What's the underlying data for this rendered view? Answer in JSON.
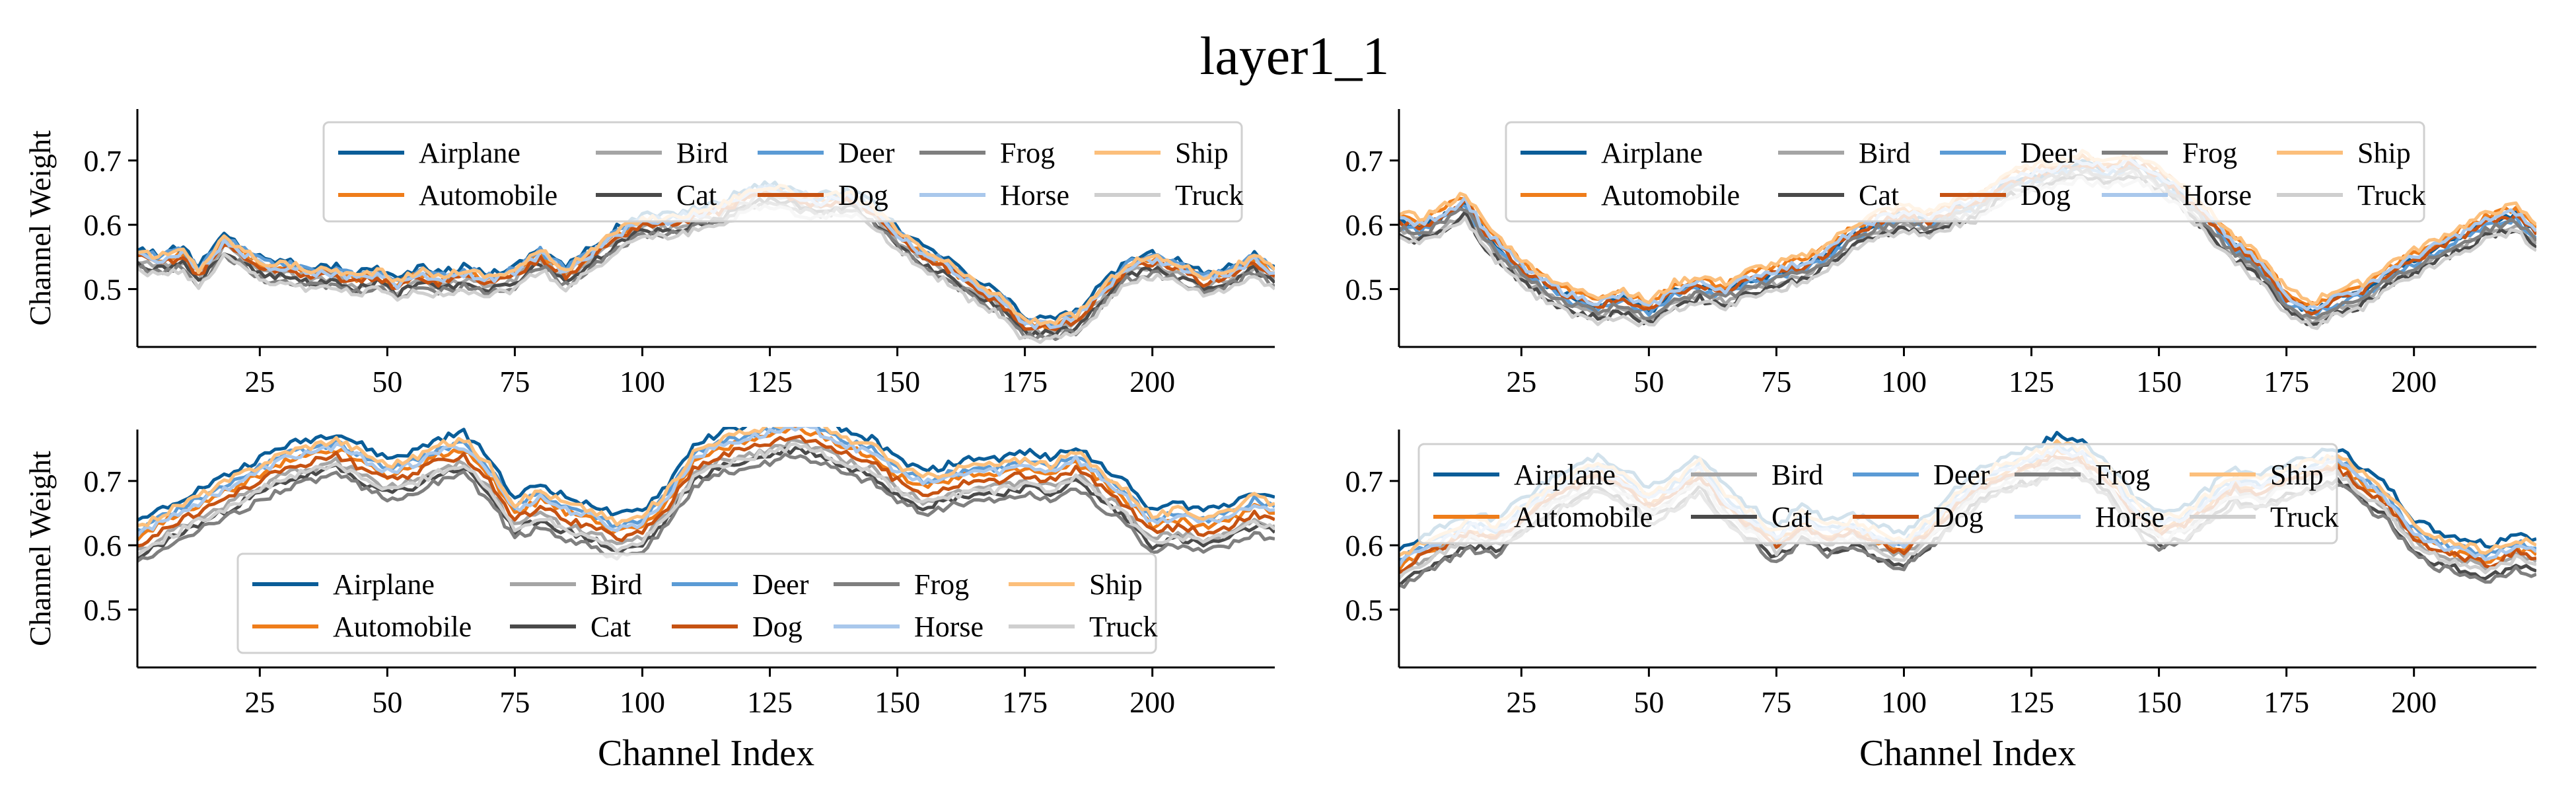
{
  "figure": {
    "title": "layer1_1"
  },
  "colors": {
    "Airplane": "#0a5d98",
    "Automobile": "#ef7d1a",
    "Bird": "#a5a5a5",
    "Cat": "#4a4a4a",
    "Deer": "#5b9bd5",
    "Dog": "#c65212",
    "Frog": "#7f7f7f",
    "Horse": "#a9c8ec",
    "Ship": "#fcbf7b",
    "Truck": "#cfcfcf"
  },
  "chart_data": [
    {
      "type": "line",
      "panel": "top-left",
      "xlim": [
        1,
        224
      ],
      "ylim": [
        0.41,
        0.78
      ],
      "xticks": [
        25,
        50,
        75,
        100,
        125,
        150,
        175,
        200
      ],
      "yticks": [
        0.5,
        0.6,
        0.7
      ],
      "xlabel": "",
      "ylabel": "Channel Weight",
      "legend": {
        "placement": "upper-center",
        "order": [
          "Airplane",
          "Automobile",
          "Bird",
          "Cat",
          "Deer",
          "Dog",
          "Frog",
          "Horse",
          "Ship",
          "Truck"
        ]
      },
      "x": [
        1,
        5,
        10,
        13,
        18,
        22,
        26,
        30,
        35,
        40,
        44,
        48,
        52,
        56,
        60,
        65,
        70,
        75,
        80,
        85,
        90,
        95,
        100,
        105,
        110,
        115,
        120,
        125,
        130,
        135,
        140,
        145,
        150,
        155,
        160,
        165,
        170,
        175,
        180,
        185,
        190,
        195,
        200,
        205,
        210,
        215,
        220,
        224
      ],
      "base": [
        0.55,
        0.54,
        0.55,
        0.52,
        0.57,
        0.55,
        0.53,
        0.53,
        0.52,
        0.52,
        0.51,
        0.52,
        0.5,
        0.52,
        0.51,
        0.52,
        0.51,
        0.52,
        0.55,
        0.52,
        0.55,
        0.58,
        0.6,
        0.6,
        0.61,
        0.62,
        0.64,
        0.65,
        0.64,
        0.63,
        0.64,
        0.62,
        0.58,
        0.55,
        0.53,
        0.5,
        0.48,
        0.44,
        0.44,
        0.45,
        0.49,
        0.53,
        0.54,
        0.53,
        0.51,
        0.52,
        0.54,
        0.52
      ],
      "offsets": {
        "Airplane": 0.015,
        "Automobile": 0.005,
        "Bird": -0.005,
        "Cat": -0.01,
        "Deer": 0.01,
        "Dog": 0.0,
        "Frog": -0.015,
        "Horse": 0.005,
        "Ship": 0.01,
        "Truck": -0.02
      }
    },
    {
      "type": "line",
      "panel": "top-right",
      "xlim": [
        1,
        224
      ],
      "ylim": [
        0.41,
        0.78
      ],
      "xticks": [
        25,
        50,
        75,
        100,
        125,
        150,
        175,
        200
      ],
      "yticks": [
        0.5,
        0.6,
        0.7
      ],
      "xlabel": "",
      "ylabel": "",
      "legend": {
        "placement": "upper-center",
        "order": [
          "Airplane",
          "Automobile",
          "Bird",
          "Cat",
          "Deer",
          "Dog",
          "Frog",
          "Horse",
          "Ship",
          "Truck"
        ]
      },
      "x": [
        1,
        5,
        10,
        14,
        18,
        22,
        26,
        30,
        35,
        40,
        45,
        50,
        55,
        60,
        65,
        70,
        75,
        80,
        85,
        90,
        95,
        100,
        105,
        110,
        115,
        120,
        125,
        130,
        135,
        140,
        145,
        150,
        155,
        160,
        165,
        170,
        175,
        180,
        185,
        190,
        195,
        200,
        205,
        210,
        215,
        220,
        224
      ],
      "base": [
        0.6,
        0.59,
        0.61,
        0.63,
        0.58,
        0.55,
        0.52,
        0.5,
        0.48,
        0.47,
        0.48,
        0.46,
        0.49,
        0.5,
        0.49,
        0.51,
        0.52,
        0.53,
        0.55,
        0.58,
        0.6,
        0.61,
        0.6,
        0.62,
        0.63,
        0.66,
        0.67,
        0.68,
        0.69,
        0.68,
        0.69,
        0.67,
        0.64,
        0.6,
        0.56,
        0.53,
        0.48,
        0.46,
        0.48,
        0.49,
        0.52,
        0.54,
        0.56,
        0.58,
        0.6,
        0.61,
        0.58
      ],
      "offsets": {
        "Airplane": 0.005,
        "Automobile": 0.015,
        "Bird": -0.01,
        "Cat": -0.015,
        "Deer": 0.0,
        "Dog": 0.005,
        "Frog": -0.005,
        "Horse": 0.01,
        "Ship": 0.02,
        "Truck": -0.02
      }
    },
    {
      "type": "line",
      "panel": "bottom-left",
      "xlim": [
        1,
        224
      ],
      "ylim": [
        0.41,
        0.78
      ],
      "xticks": [
        25,
        50,
        75,
        100,
        125,
        150,
        175,
        200
      ],
      "yticks": [
        0.5,
        0.6,
        0.7
      ],
      "xlabel": "Channel Index",
      "ylabel": "Channel Weight",
      "legend": {
        "placement": "lower-center",
        "order": [
          "Airplane",
          "Automobile",
          "Bird",
          "Cat",
          "Deer",
          "Dog",
          "Frog",
          "Horse",
          "Ship",
          "Truck"
        ]
      },
      "x": [
        1,
        5,
        10,
        15,
        20,
        25,
        30,
        35,
        40,
        45,
        50,
        55,
        60,
        65,
        70,
        75,
        80,
        85,
        90,
        95,
        100,
        105,
        110,
        115,
        120,
        125,
        130,
        135,
        140,
        145,
        150,
        155,
        160,
        165,
        170,
        175,
        180,
        185,
        190,
        195,
        200,
        205,
        210,
        215,
        220,
        224
      ],
      "base": [
        0.6,
        0.62,
        0.64,
        0.66,
        0.68,
        0.7,
        0.72,
        0.73,
        0.74,
        0.72,
        0.7,
        0.71,
        0.73,
        0.74,
        0.7,
        0.64,
        0.66,
        0.64,
        0.63,
        0.61,
        0.62,
        0.66,
        0.72,
        0.74,
        0.75,
        0.76,
        0.77,
        0.76,
        0.74,
        0.73,
        0.7,
        0.68,
        0.69,
        0.7,
        0.7,
        0.71,
        0.7,
        0.72,
        0.69,
        0.66,
        0.62,
        0.63,
        0.62,
        0.63,
        0.65,
        0.64
      ],
      "offsets": {
        "Airplane": 0.035,
        "Automobile": 0.01,
        "Bird": -0.01,
        "Cat": -0.02,
        "Deer": 0.02,
        "Dog": 0.0,
        "Frog": -0.03,
        "Horse": 0.015,
        "Ship": 0.025,
        "Truck": -0.015
      }
    },
    {
      "type": "line",
      "panel": "bottom-right",
      "xlim": [
        1,
        224
      ],
      "ylim": [
        0.41,
        0.78
      ],
      "xticks": [
        25,
        50,
        75,
        100,
        125,
        150,
        175,
        200
      ],
      "yticks": [
        0.5,
        0.6,
        0.7
      ],
      "xlabel": "Channel Index",
      "ylabel": "",
      "legend": {
        "placement": "upper-left",
        "order": [
          "Airplane",
          "Automobile",
          "Bird",
          "Cat",
          "Deer",
          "Dog",
          "Frog",
          "Horse",
          "Ship",
          "Truck"
        ]
      },
      "x": [
        1,
        5,
        10,
        15,
        20,
        25,
        30,
        35,
        40,
        45,
        50,
        55,
        60,
        65,
        70,
        75,
        80,
        85,
        90,
        95,
        100,
        105,
        110,
        115,
        120,
        125,
        130,
        135,
        140,
        145,
        150,
        155,
        160,
        165,
        170,
        175,
        180,
        185,
        190,
        195,
        200,
        205,
        210,
        215,
        220,
        224
      ],
      "base": [
        0.56,
        0.58,
        0.6,
        0.62,
        0.61,
        0.64,
        0.67,
        0.69,
        0.71,
        0.69,
        0.66,
        0.68,
        0.71,
        0.66,
        0.63,
        0.6,
        0.63,
        0.61,
        0.62,
        0.6,
        0.59,
        0.62,
        0.66,
        0.69,
        0.71,
        0.72,
        0.74,
        0.73,
        0.7,
        0.65,
        0.62,
        0.63,
        0.66,
        0.69,
        0.68,
        0.7,
        0.71,
        0.72,
        0.69,
        0.66,
        0.61,
        0.59,
        0.58,
        0.57,
        0.59,
        0.58
      ],
      "offsets": {
        "Airplane": 0.03,
        "Automobile": 0.005,
        "Bird": -0.005,
        "Cat": -0.02,
        "Deer": 0.015,
        "Dog": 0.0,
        "Frog": -0.025,
        "Horse": 0.01,
        "Ship": 0.02,
        "Truck": -0.01
      }
    }
  ]
}
